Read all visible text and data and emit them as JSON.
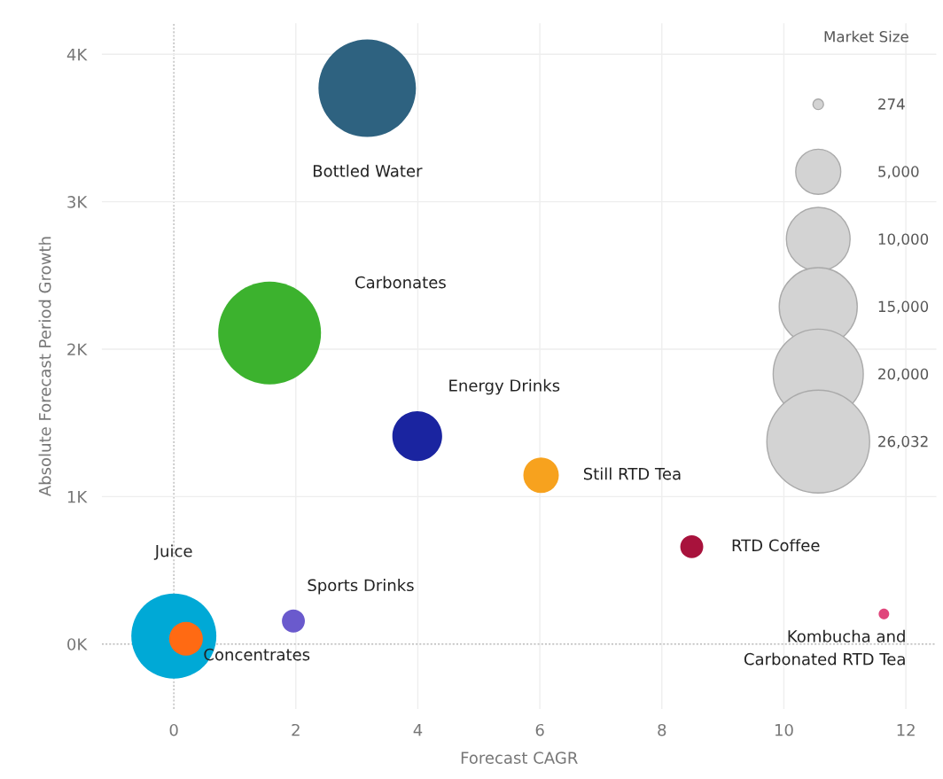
{
  "chart_data": {
    "type": "bubble",
    "xlabel": "Forecast CAGR",
    "ylabel": "Absolute Forecast Period Growth",
    "legend_title": "Market Size",
    "series": [
      {
        "name": "Bottled Water",
        "color": "#2e6280",
        "x": [
          3.17
        ],
        "values": [
          3770
        ],
        "sizes": [
          23400
        ]
      },
      {
        "name": "Carbonates",
        "color": "#3cb22e",
        "x": [
          1.57
        ],
        "values": [
          2110
        ],
        "sizes": [
          26032
        ]
      },
      {
        "name": "Energy Drinks",
        "color": "#1a24a0",
        "x": [
          3.99
        ],
        "values": [
          1410
        ],
        "sizes": [
          6100
        ]
      },
      {
        "name": "Still RTD Tea",
        "color": "#f7a21e",
        "x": [
          6.02
        ],
        "values": [
          1145
        ],
        "sizes": [
          3100
        ]
      },
      {
        "name": "RTD Coffee",
        "color": "#a8123c",
        "x": [
          8.49
        ],
        "values": [
          660
        ],
        "sizes": [
          1300
        ]
      },
      {
        "name": "Kombucha and\nCarbonated RTD Tea",
        "color": "#e0457b",
        "x": [
          11.64
        ],
        "values": [
          204
        ],
        "sizes": [
          274
        ]
      },
      {
        "name": "Sports Drinks",
        "color": "#6a5acd",
        "x": [
          1.96
        ],
        "values": [
          156
        ],
        "sizes": [
          1300
        ]
      },
      {
        "name": "Juice",
        "color": "#00a9d6",
        "x": [
          0.0
        ],
        "values": [
          54
        ],
        "sizes": [
          17800
        ]
      },
      {
        "name": "Concentrates",
        "color": "#ff6a13",
        "x": [
          0.2
        ],
        "values": [
          36
        ],
        "sizes": [
          2800
        ]
      }
    ],
    "size_legend": [
      274,
      {
        "value": 5000,
        "label": "5,000"
      },
      {
        "value": 10000,
        "label": "10,000"
      },
      {
        "value": 15000,
        "label": "15,000"
      },
      {
        "value": 20000,
        "label": "20,000"
      },
      {
        "value": 26032,
        "label": "26,032"
      }
    ],
    "xlim": [
      -1.18,
      12.5
    ],
    "xticks": [
      0,
      2,
      4,
      6,
      8,
      10,
      12
    ],
    "ylim": [
      -440,
      4210
    ],
    "yticks": [
      {
        "value": 0,
        "label": "0K"
      },
      {
        "value": 1000,
        "label": "1K"
      },
      {
        "value": 2000,
        "label": "2K"
      },
      {
        "value": 3000,
        "label": "3K"
      },
      {
        "value": 4000,
        "label": "4K"
      }
    ],
    "grid": true
  }
}
